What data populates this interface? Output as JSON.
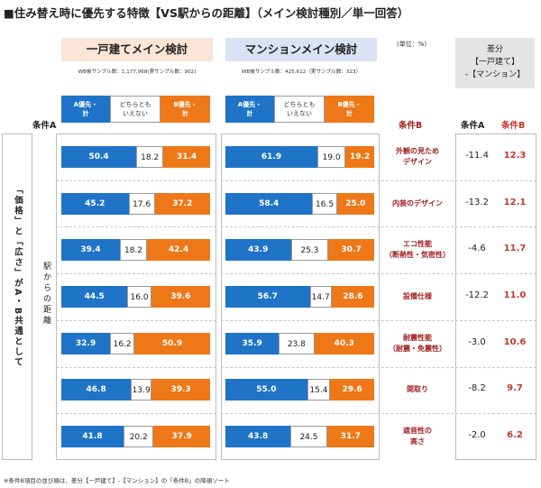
{
  "title": "■住み替え時に優先する特徴【VS駅からの距離】（メイン検討種別／単一回答）",
  "house": {
    "header": "一戸建てメイン検討",
    "sample": "WB後サンプル数：1,177,968(実サンプル数：902)"
  },
  "mansion": {
    "header": "マンションメイン検討",
    "sample": "WB後サンプル数：425,612（実サンプル数：323）"
  },
  "unit": "(単位：%)",
  "diff_header": [
    "差分",
    "【一戸建て】",
    "-【マンション】"
  ],
  "legend": {
    "a": [
      "A優先・",
      "計"
    ],
    "neutral": [
      "どちらとも",
      "いえない"
    ],
    "b": [
      "B優先・",
      "計"
    ]
  },
  "col_a_label": "条件A",
  "col_b_label": "条件B",
  "diff_col_a": "条件A",
  "diff_col_b": "条件B",
  "condition_a": "「価格」と「広さ」がA・B共通として",
  "condition_a_sub": "駅からの距離",
  "footnote": "※条件B項目の並び順は、差分【一戸建て】-【マンション】の「条件B」の降順ソート",
  "colors": {
    "a": "#1f74c8",
    "neutral": "#ffffff",
    "b": "#ee7718",
    "diff_b": "#c0392b"
  },
  "chart_data": {
    "type": "bar",
    "stacked": true,
    "orientation": "horizontal",
    "categories": [
      [
        "外観の見ため",
        "デザイン"
      ],
      [
        "内装のデザイン"
      ],
      [
        "エコ性能",
        "（断熱性・気密性）"
      ],
      [
        "設備仕様"
      ],
      [
        "耐震性能",
        "（耐震・免震性）"
      ],
      [
        "間取り"
      ],
      [
        "遮音性の",
        "高さ"
      ]
    ],
    "house": {
      "a": [
        50.4,
        45.2,
        39.4,
        44.5,
        32.9,
        46.8,
        41.8
      ],
      "neutral": [
        18.2,
        17.6,
        18.2,
        16.0,
        16.2,
        13.9,
        20.2
      ],
      "b": [
        31.4,
        37.2,
        42.4,
        39.6,
        50.9,
        39.3,
        37.9
      ]
    },
    "mansion": {
      "a": [
        61.9,
        58.4,
        43.9,
        56.7,
        35.9,
        55.0,
        43.8
      ],
      "neutral": [
        19.0,
        16.5,
        25.3,
        14.7,
        23.8,
        15.4,
        24.5
      ],
      "b": [
        19.2,
        25.0,
        30.7,
        28.6,
        40.3,
        29.6,
        31.7
      ]
    },
    "diff": {
      "a": [
        "-11.4",
        "-13.2",
        "-4.6",
        "-12.2",
        "-3.0",
        "-8.2",
        "-2.0"
      ],
      "b": [
        "12.3",
        "12.1",
        "11.7",
        "11.0",
        "10.6",
        "9.7",
        "6.2"
      ]
    },
    "xlim": [
      0,
      100
    ]
  }
}
